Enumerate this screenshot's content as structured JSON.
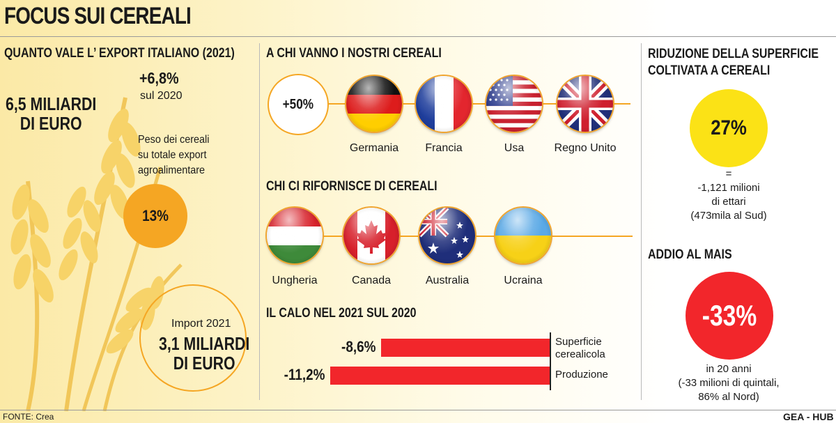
{
  "title": "FOCUS SUI CEREALI",
  "left": {
    "heading": "QUANTO VALE L’ EXPORT ITALIANO (2021)",
    "export_value_line1": "6,5 MILIARDI",
    "export_value_line2": "DI EURO",
    "growth": "+6,8%",
    "growth_note": "sul 2020",
    "share_label_line1": "Peso dei cereali",
    "share_label_line2": "su totale export",
    "share_label_line3": "agroalimentare",
    "share_value": "13%",
    "import_label": "Import 2021",
    "import_value_line1": "3,1 MILIARDI",
    "import_value_line2": "DI EURO"
  },
  "middle": {
    "export_heading": "A CHI VANNO I NOSTRI CEREALI",
    "export_growth": "+50%",
    "export_countries": [
      "Germania",
      "Francia",
      "Usa",
      "Regno Unito"
    ],
    "import_heading": "CHI CI RIFORNISCE DI CEREALI",
    "import_countries": [
      "Ungheria",
      "Canada",
      "Australia",
      "Ucraina"
    ],
    "decline_heading": "IL CALO NEL 2021 SUL 2020"
  },
  "chart_data": {
    "type": "bar",
    "orientation": "horizontal",
    "categories": [
      "Superficie cerealicola",
      "Produzione"
    ],
    "category_lines": [
      [
        "Superficie",
        "cerealicola"
      ],
      [
        "Produzione"
      ]
    ],
    "values": [
      -8.6,
      -11.2
    ],
    "value_labels": [
      "-8,6%",
      "-11,2%"
    ],
    "bar_color": "#f2262b",
    "unit": "%"
  },
  "right": {
    "area_heading_line1": "RIDUZIONE DELLA SUPERFICIE",
    "area_heading_line2": "COLTIVATA A CEREALI",
    "area_value": "27%",
    "area_note_line1": "=",
    "area_note_line2": "-1,121 milioni",
    "area_note_line3": "di ettari",
    "area_note_line4": "(473mila al Sud)",
    "mais_heading": "ADDIO AL MAIS",
    "mais_value": "-33%",
    "mais_note_line1": "in 20 anni",
    "mais_note_line2": "(-33 milioni di quintali,",
    "mais_note_line3": "86% al Nord)"
  },
  "footer": {
    "source": "FONTE: Crea",
    "credit": "GEA - HUB"
  },
  "colors": {
    "accent_orange": "#f5a623",
    "yellow": "#fbe216",
    "red": "#f2262b"
  }
}
